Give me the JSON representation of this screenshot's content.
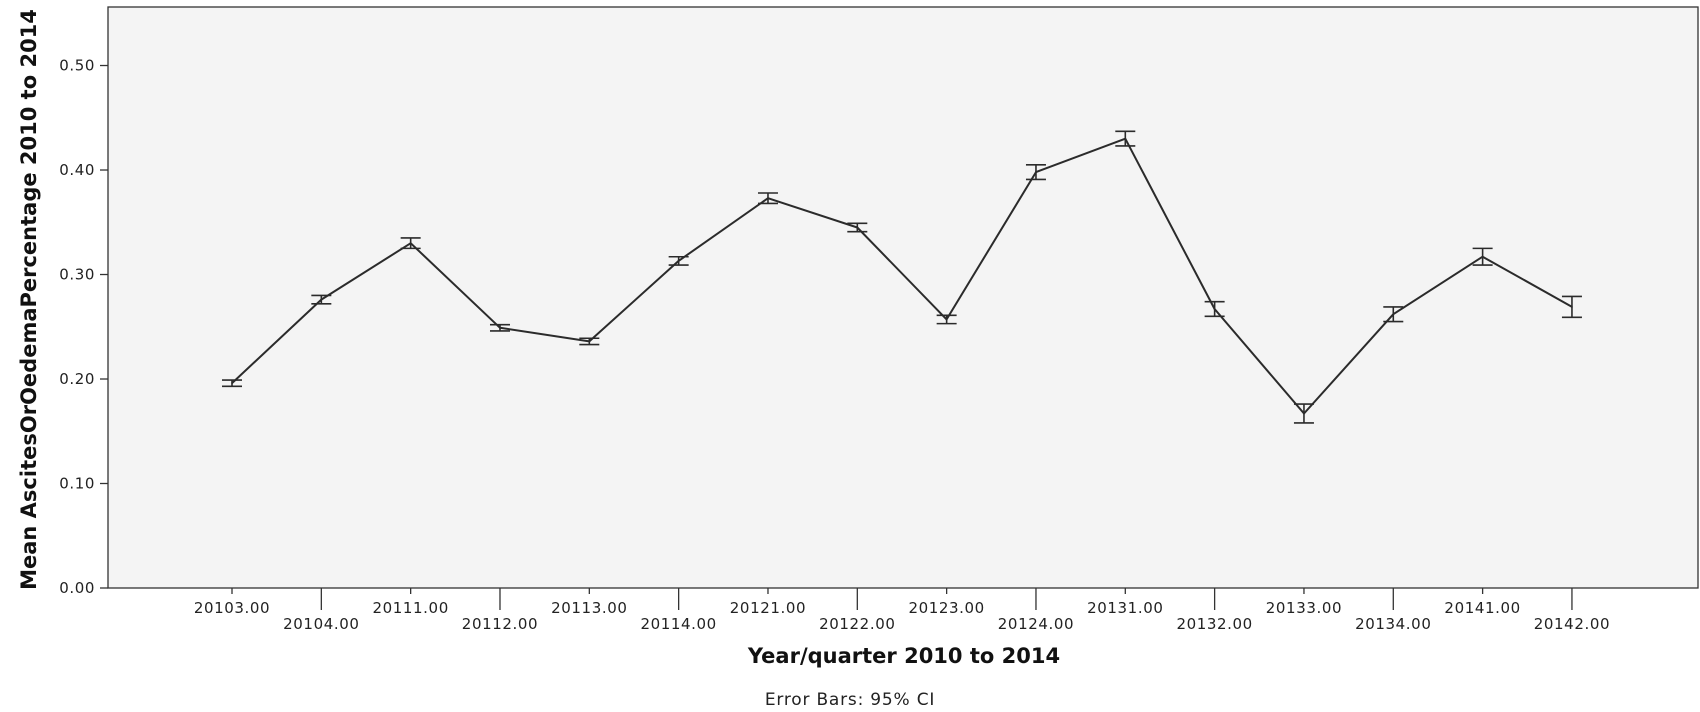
{
  "chart_data": {
    "type": "line",
    "title": "",
    "xlabel": "Year/quarter 2010 to 2014",
    "ylabel": "Mean AscitesOrOedemaPercentage 2010 to 2014",
    "footnote": "Error Bars: 95% CI",
    "categories": [
      "20103.00",
      "20104.00",
      "20111.00",
      "20112.00",
      "20113.00",
      "20114.00",
      "20121.00",
      "20122.00",
      "20123.00",
      "20124.00",
      "20131.00",
      "20132.00",
      "20133.00",
      "20134.00",
      "20141.00",
      "20142.00"
    ],
    "series": [
      {
        "values": [
          0.196,
          0.276,
          0.33,
          0.249,
          0.236,
          0.313,
          0.373,
          0.345,
          0.257,
          0.398,
          0.43,
          0.267,
          0.167,
          0.262,
          0.317,
          0.269
        ],
        "ci_low": [
          0.193,
          0.272,
          0.325,
          0.246,
          0.233,
          0.309,
          0.368,
          0.341,
          0.253,
          0.391,
          0.423,
          0.26,
          0.158,
          0.255,
          0.309,
          0.259
        ],
        "ci_high": [
          0.199,
          0.28,
          0.335,
          0.252,
          0.239,
          0.317,
          0.378,
          0.349,
          0.261,
          0.405,
          0.437,
          0.274,
          0.176,
          0.269,
          0.325,
          0.279
        ]
      }
    ],
    "yticks": [
      "0.00",
      "0.10",
      "0.20",
      "0.30",
      "0.40",
      "0.50"
    ],
    "ylim": [
      0,
      0.556
    ],
    "grid": false,
    "legend": "none",
    "colors": {
      "plot_background": "#f4f4f4",
      "line": "#2b2b2b",
      "axis": "#333333"
    }
  }
}
